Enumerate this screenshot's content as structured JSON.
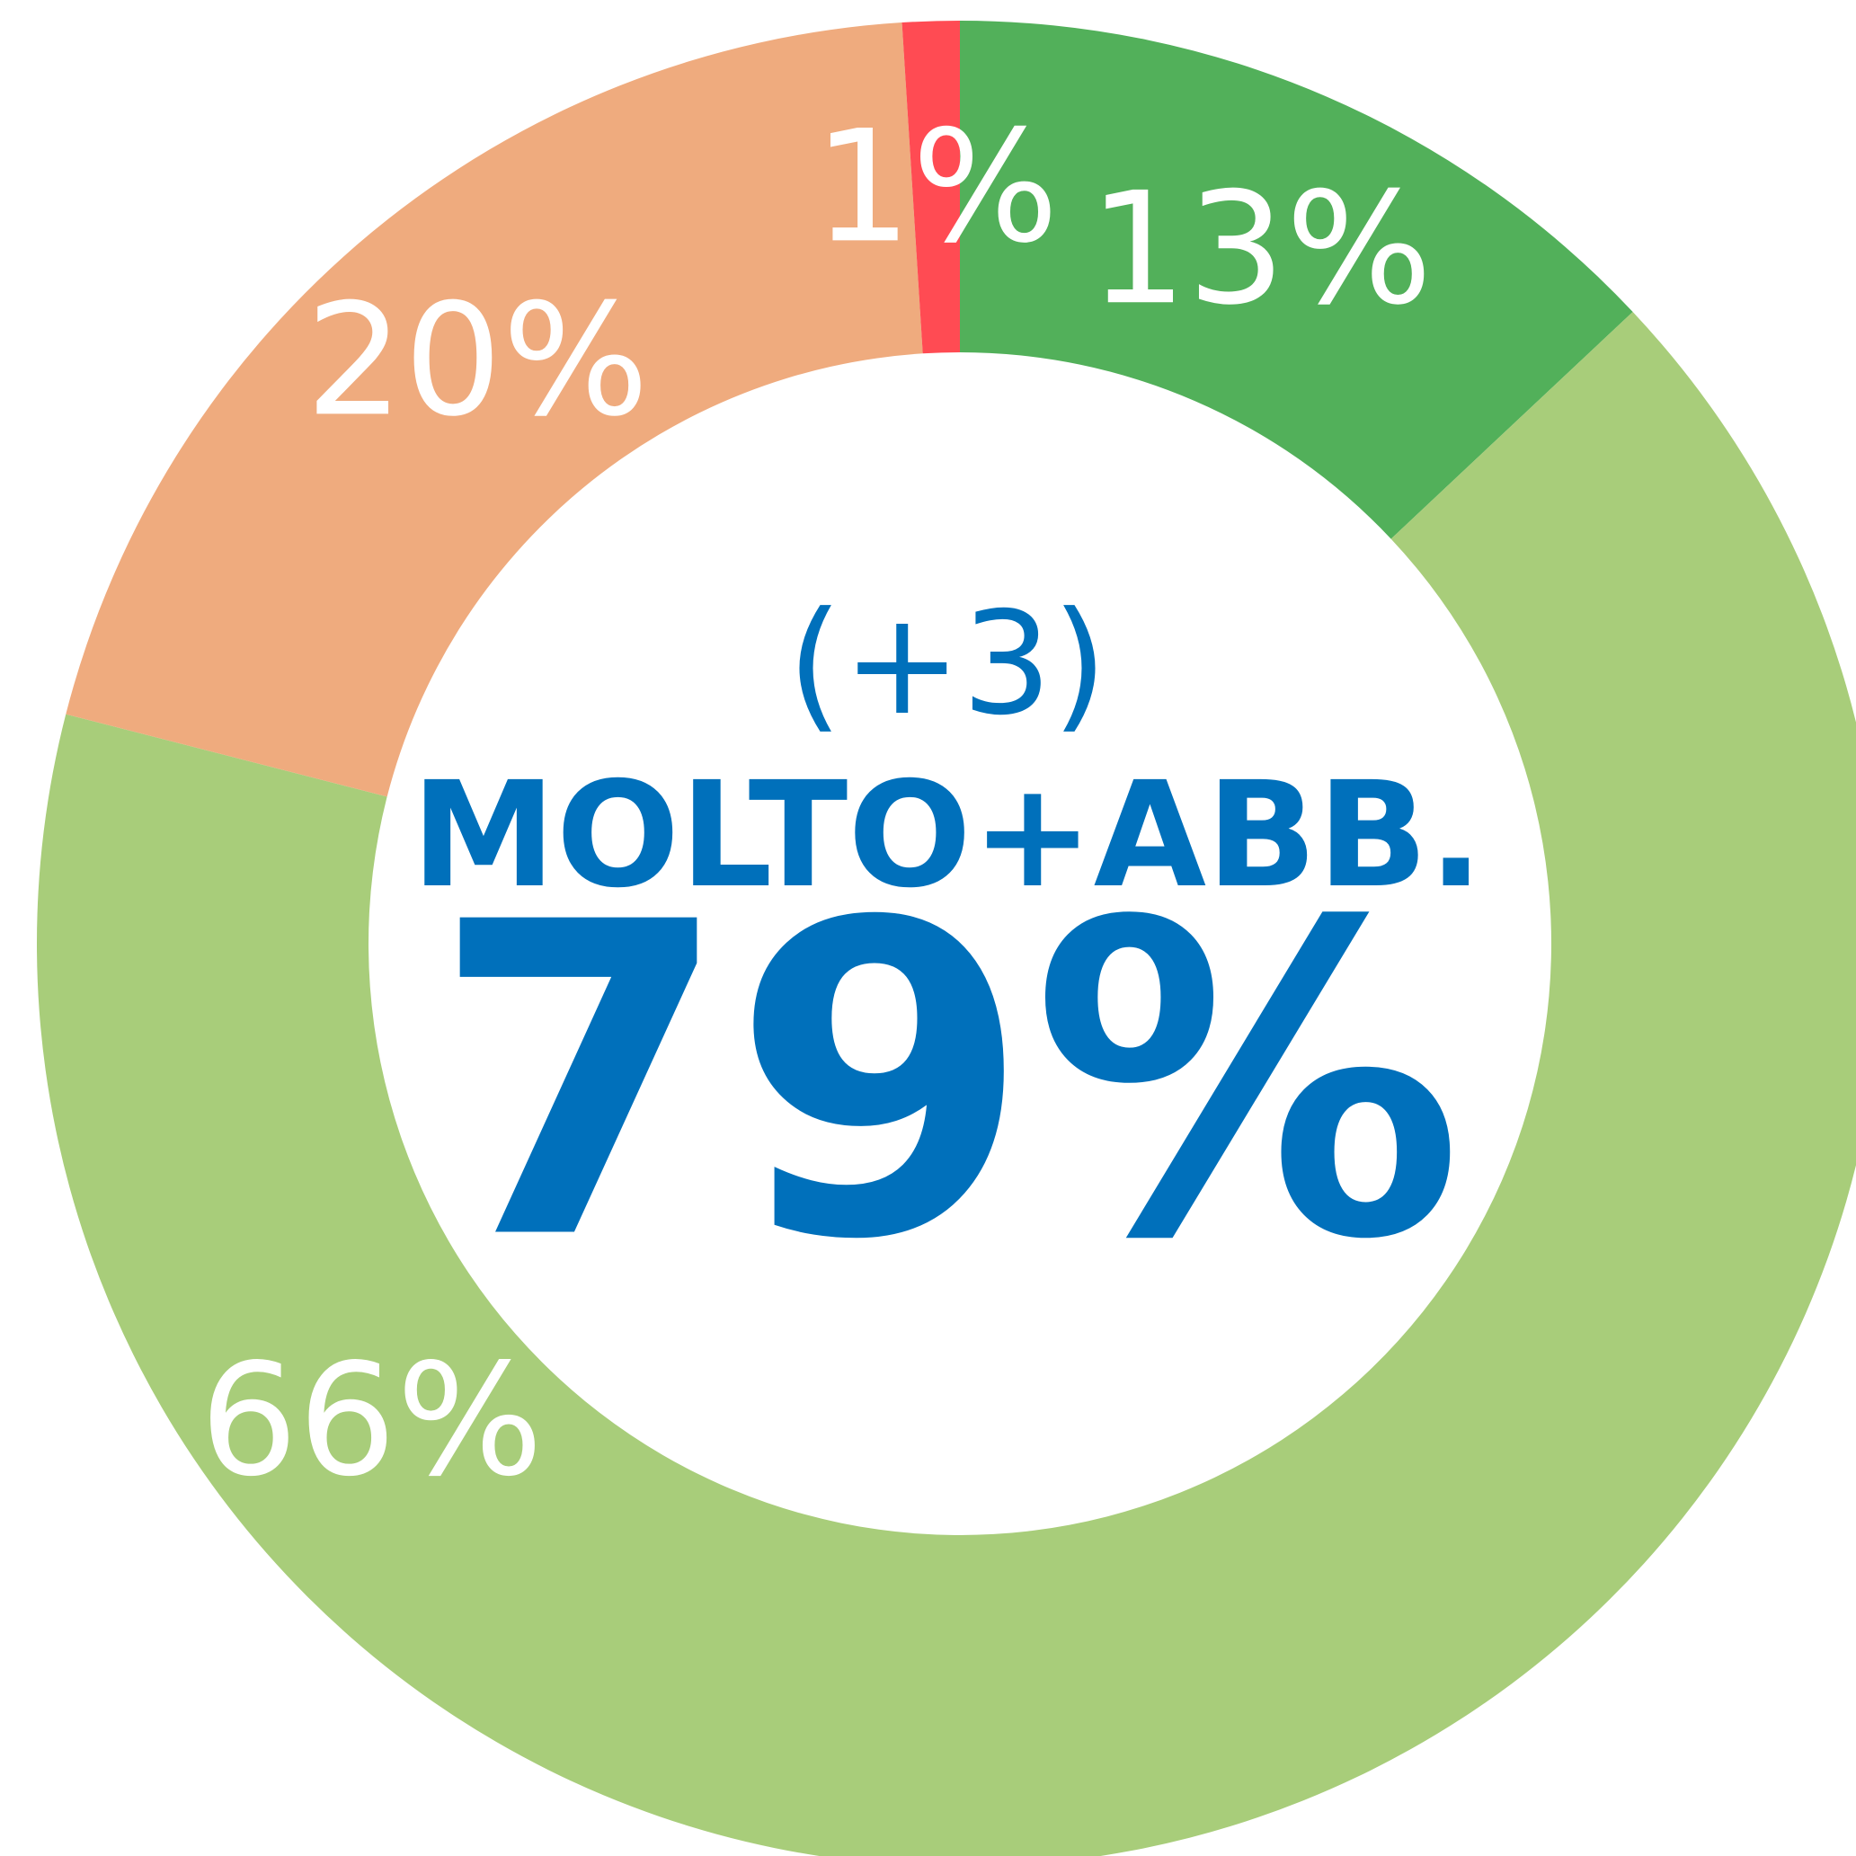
{
  "chart_data": {
    "type": "donut",
    "categories": [
      null,
      null,
      null,
      null
    ],
    "values": [
      13,
      66,
      20,
      1
    ],
    "value_labels": [
      "13%",
      "66%",
      "20%",
      "1%"
    ],
    "colors": [
      "#52b05a",
      "#a8cd7a",
      "#efab7e",
      "#ff4b53"
    ],
    "center_texts": [
      "(+3)",
      "MOLTO+ABB.",
      "79%"
    ]
  }
}
